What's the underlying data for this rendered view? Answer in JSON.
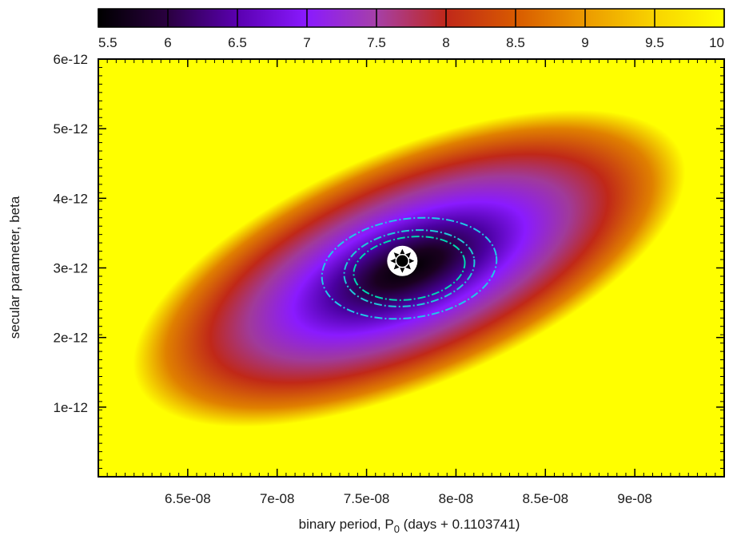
{
  "chart_data": {
    "type": "heatmap",
    "title": "",
    "xlabel": "binary period, P",
    "xlabel_sub": "0",
    "xlabel_suffix": " (days + 0.1103741)",
    "ylabel": "secular parameter, beta",
    "xlim": [
      6e-08,
      9.5e-08
    ],
    "ylim": [
      0.0,
      6e-12
    ],
    "x_ticks": [
      6.5e-08,
      7e-08,
      7.5e-08,
      8e-08,
      8.5e-08,
      9e-08
    ],
    "x_tick_labels": [
      "6.5e-08",
      "7e-08",
      "7.5e-08",
      "8e-08",
      "8.5e-08",
      "9e-08"
    ],
    "y_ticks": [
      1e-12,
      2e-12,
      3e-12,
      4e-12,
      5e-12,
      6e-12
    ],
    "y_tick_labels": [
      "1e-12",
      "2e-12",
      "3e-12",
      "4e-12",
      "5e-12",
      "6e-12"
    ],
    "colorbar": {
      "range": [
        5.5,
        10
      ],
      "ticks": [
        5.5,
        6,
        6.5,
        7,
        7.5,
        8,
        8.5,
        9,
        9.5,
        10
      ],
      "tick_labels": [
        "5.5",
        "6",
        "6.5",
        "7",
        "7.5",
        "8",
        "8.5",
        "9",
        "9.5",
        "10"
      ],
      "colormap": [
        "#000000",
        "#2a0040",
        "#5a00b0",
        "#8a1aff",
        "#a640a8",
        "#c0281a",
        "#d85a00",
        "#ec9a00",
        "#f8d400",
        "#ffff00"
      ],
      "placement": "top"
    },
    "minimum": {
      "x": 7.7e-08,
      "y": 3.1e-12,
      "value": 5.5
    },
    "surface": {
      "orientation_deg": -23,
      "saturation_value": 10
    },
    "contours": [
      {
        "level": "inner",
        "color": "#00d8b0"
      },
      {
        "level": "middle",
        "color": "#20c8d8"
      },
      {
        "level": "outer",
        "color": "#20c8e8"
      }
    ],
    "grid": false
  }
}
